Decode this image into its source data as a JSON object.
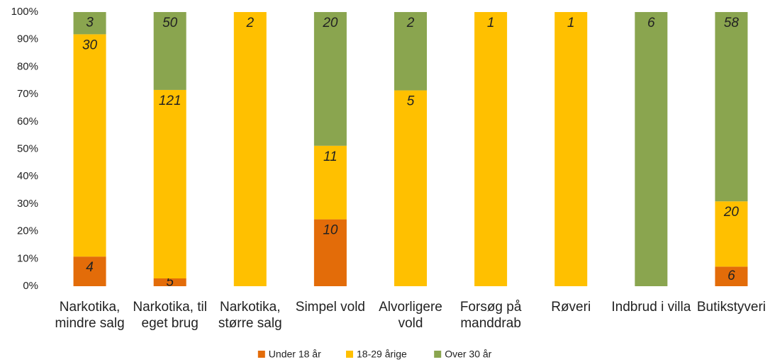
{
  "chart_data": {
    "type": "bar",
    "stacked": "percent",
    "categories": [
      "Narkotika, mindre salg",
      "Narkotika, til eget brug",
      "Narkotika, større salg",
      "Simpel vold",
      "Alvorligere vold",
      "Forsøg på manddrab",
      "Røveri",
      "Indbrud i villa",
      "Butikstyveri"
    ],
    "series": [
      {
        "name": "Under 18 år",
        "color": "#e36c09",
        "values": [
          4,
          5,
          null,
          10,
          null,
          null,
          null,
          null,
          6
        ]
      },
      {
        "name": "18-29 årige",
        "color": "#ffc000",
        "values": [
          30,
          121,
          2,
          11,
          5,
          1,
          1,
          null,
          20
        ]
      },
      {
        "name": "Over 30 år",
        "color": "#8aa54f",
        "values": [
          3,
          50,
          null,
          20,
          2,
          null,
          null,
          6,
          58
        ]
      }
    ],
    "ylim": [
      0,
      100
    ],
    "yticks": [
      {
        "value": 0,
        "label": "0%"
      },
      {
        "value": 10,
        "label": "10%"
      },
      {
        "value": 20,
        "label": "20%"
      },
      {
        "value": 30,
        "label": "30%"
      },
      {
        "value": 40,
        "label": "40%"
      },
      {
        "value": 50,
        "label": "50%"
      },
      {
        "value": 60,
        "label": "60%"
      },
      {
        "value": 70,
        "label": "70%"
      },
      {
        "value": 80,
        "label": "80%"
      },
      {
        "value": 90,
        "label": "90%"
      },
      {
        "value": 100,
        "label": "100%"
      }
    ],
    "grid": false,
    "legend": "bottom"
  }
}
